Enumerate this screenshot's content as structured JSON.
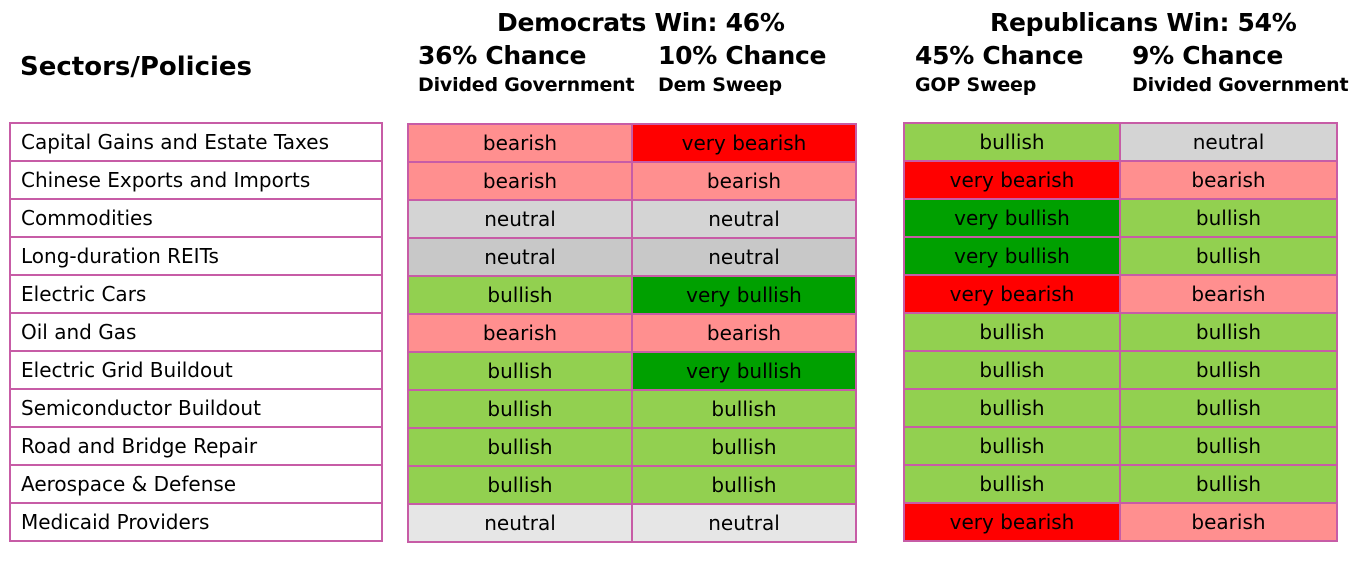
{
  "header": {
    "sectors_title": "Sectors/Policies",
    "dem_title": "Democrats Win:  46%",
    "rep_title": "Republicans Win:  54%",
    "scenarios": [
      {
        "chance": "36% Chance",
        "label": "Divided Government"
      },
      {
        "chance": "10% Chance",
        "label": "Dem Sweep"
      },
      {
        "chance": "45% Chance",
        "label": "GOP Sweep"
      },
      {
        "chance": "9% Chance",
        "label": "Divided Government"
      }
    ]
  },
  "sectors": [
    "Capital Gains and Estate Taxes",
    "Chinese Exports and Imports",
    "Commodities",
    "Long-duration REITs",
    "Electric Cars",
    "Oil and Gas",
    "Electric Grid Buildout",
    "Semiconductor Buildout",
    "Road and Bridge Repair",
    "Aerospace & Defense",
    "Medicaid Providers"
  ],
  "dem_grid": [
    [
      "bearish",
      "very bearish"
    ],
    [
      "bearish",
      "bearish"
    ],
    [
      "neutral",
      "neutral"
    ],
    [
      "neutral",
      "neutral"
    ],
    [
      "bullish",
      "very bullish"
    ],
    [
      "bearish",
      "bearish"
    ],
    [
      "bullish",
      "very bullish"
    ],
    [
      "bullish",
      "bullish"
    ],
    [
      "bullish",
      "bullish"
    ],
    [
      "bullish",
      "bullish"
    ],
    [
      "neutral",
      "neutral"
    ]
  ],
  "rep_grid": [
    [
      "bullish",
      "neutral"
    ],
    [
      "very bearish",
      "bearish"
    ],
    [
      "very bullish",
      "bullish"
    ],
    [
      "very bullish",
      "bullish"
    ],
    [
      "very bearish",
      "bearish"
    ],
    [
      "bullish",
      "bullish"
    ],
    [
      "bullish",
      "bullish"
    ],
    [
      "bullish",
      "bullish"
    ],
    [
      "bullish",
      "bullish"
    ],
    [
      "bullish",
      "bullish"
    ],
    [
      "very bearish",
      "bearish"
    ]
  ],
  "colors": {
    "bullish": "#92d050",
    "very_bullish": "#00a000",
    "bearish": "#ff8f8f",
    "very_bearish": "#ff0000",
    "neutral": "#d4d4d4",
    "border": "#c75ca6"
  }
}
